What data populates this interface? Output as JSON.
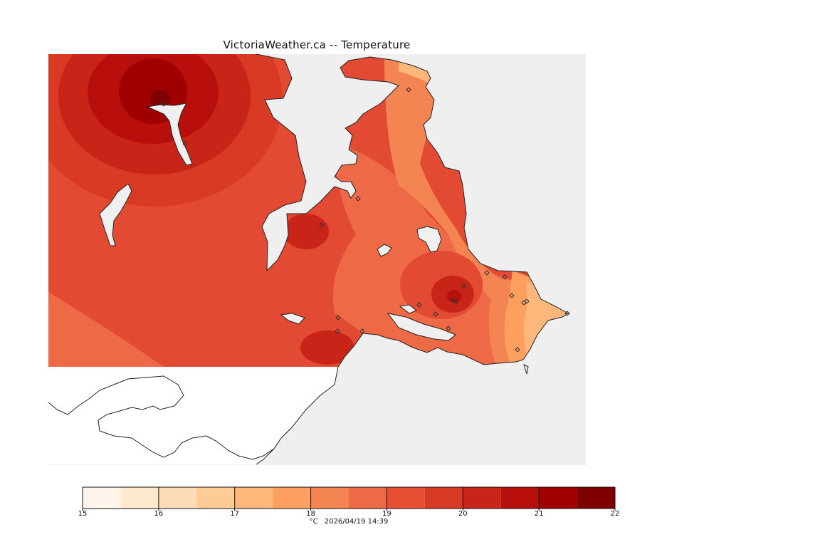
{
  "title": "VictoriaWeather.ca -- Temperature",
  "legend": {
    "labels": [
      "15",
      "16",
      "17",
      "18",
      "19",
      "20",
      "21",
      "22"
    ],
    "colors": [
      "#fff5eb",
      "#fee8cf",
      "#fddbb6",
      "#fdcb96",
      "#fdb77a",
      "#fc9f5f",
      "#f48451",
      "#ee6a46",
      "#e74f32",
      "#d93a26",
      "#c92418",
      "#b80e0c",
      "#a00000",
      "#7f0000"
    ]
  },
  "footer": {
    "unit": "°C",
    "timestamp": "2026/04/19 14:39"
  },
  "colors": {
    "land_bg": "#e34a33",
    "water": "#efefef",
    "unmapped_land": "#ffffff",
    "station_marker": "#333333"
  }
}
